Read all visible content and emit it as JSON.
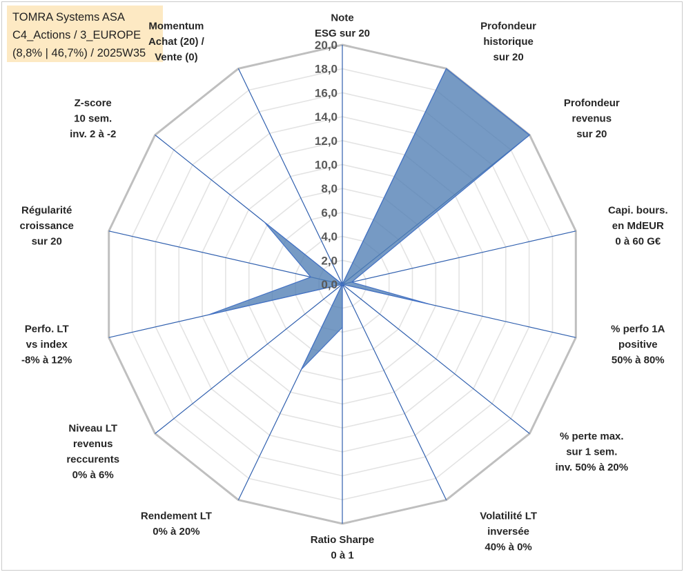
{
  "info": {
    "line1": "TOMRA Systems ASA",
    "line2": "C4_Actions / 3_EUROPE",
    "line3": "(8,8% | 46,7%) / 2025W35"
  },
  "chart_data": {
    "type": "radar",
    "title": "",
    "rmin": 0,
    "rmax": 20,
    "tick_step": 2,
    "tick_labels": [
      "0,0",
      "2,0",
      "4,0",
      "6,0",
      "8,0",
      "10,0",
      "12,0",
      "14,0",
      "16,0",
      "18,0",
      "20,0"
    ],
    "categories": [
      [
        "Note",
        "ESG sur 20"
      ],
      [
        "Profondeur",
        "historique",
        "sur 20"
      ],
      [
        "Profondeur",
        "revenus",
        "sur 20"
      ],
      [
        "Capi. bours.",
        "en MdEUR",
        "0 à 60 G€"
      ],
      [
        "% perfo 1A",
        "positive",
        "50% à 80%"
      ],
      [
        "% perte max.",
        "sur 1 sem.",
        "inv. 50% à 20%"
      ],
      [
        "Volatilité LT",
        "inversée",
        "40% à 0%"
      ],
      [
        "Ratio Sharpe",
        "0 à 1"
      ],
      [
        "Rendement LT",
        "0% à 20%"
      ],
      [
        "Niveau LT",
        "revenus",
        "reccurents",
        "0% à 6%"
      ],
      [
        "Perfo. LT",
        "vs index",
        "-8% à 12%"
      ],
      [
        "Régularité",
        "croissance",
        "sur 20"
      ],
      [
        "Z-score",
        "10 sem.",
        "inv. 2 à -2"
      ],
      [
        "Momentum",
        "Achat (20) /",
        "Vente (0)"
      ]
    ],
    "series": [
      {
        "values": [
          0,
          20,
          20,
          0.8,
          7.5,
          0,
          0,
          3.6,
          7.9,
          0,
          11.5,
          2.7,
          8.3,
          0
        ]
      }
    ],
    "colors": {
      "fill": "#4f7eb3",
      "stroke": "#4472c4",
      "spoke": "#2f5fae",
      "grid_outer": "#bfbfbf",
      "grid_inner": "#e3e3e3"
    },
    "grid": true,
    "legend": "none"
  }
}
